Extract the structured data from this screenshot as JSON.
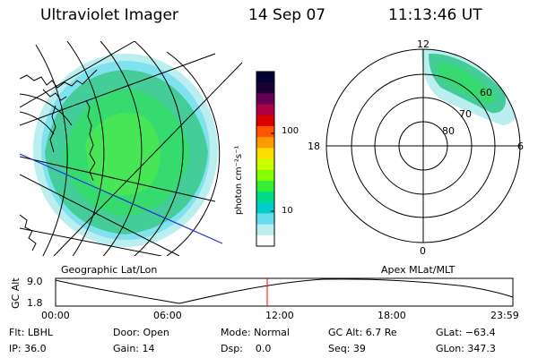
{
  "header": {
    "instrument": "Ultraviolet Imager",
    "date": "14 Sep 07",
    "time": "11:13:46 UT"
  },
  "geo_panel": {
    "label": "Geographic Lat/Lon"
  },
  "apex_panel": {
    "label": "Apex  MLat/MLT",
    "mlt_labels": [
      "12",
      "18",
      "6",
      "0"
    ],
    "lat_labels": [
      "60",
      "70",
      "80"
    ]
  },
  "colorbar": {
    "units": "photon cm⁻²s⁻¹",
    "ticks": [
      "100",
      "10"
    ],
    "colors": [
      "#000033",
      "#1a0033",
      "#660055",
      "#aa0044",
      "#dd0000",
      "#ff5500",
      "#ff9900",
      "#ffdd00",
      "#ccff00",
      "#88ff00",
      "#33ee33",
      "#00dd88",
      "#00cccc",
      "#66ddee",
      "#bbeeee",
      "#ffffff"
    ]
  },
  "timeline": {
    "axis_label": "GC Alt",
    "y_ticks": [
      "9.0",
      "1.8"
    ],
    "x_ticks": [
      "00:00",
      "06:00",
      "12:00",
      "18:00",
      "23:59"
    ],
    "marker_time": "11:13:46",
    "marker_color": "#ff0000"
  },
  "info": {
    "flt": "Flt: LBHL",
    "ip": "IP: 36.0",
    "door": "Door: Open",
    "gain": "Gain: 14",
    "mode": "Mode: Normal",
    "dsp": "Dsp:    0.0",
    "gcalt": "GC Alt: 6.7 Re",
    "seq": "Seq: 39",
    "glat": "GLat: −63.4",
    "glon": "GLon: 347.3"
  }
}
